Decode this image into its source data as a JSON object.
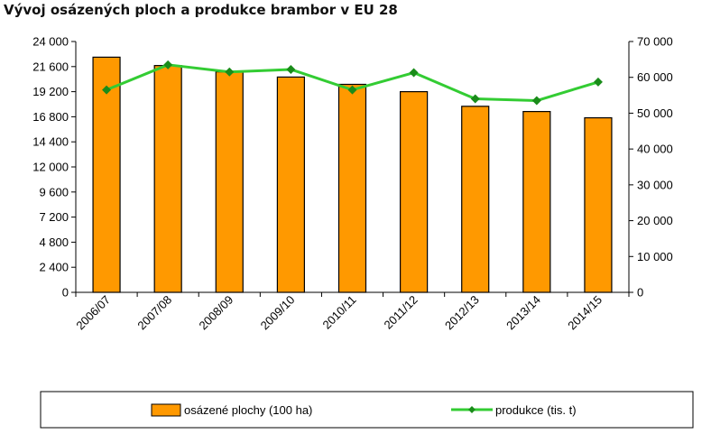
{
  "chart_data": {
    "type": "bar+line",
    "title": "Vývoj osázených ploch a produkce brambor v EU 28",
    "categories": [
      "2006/07",
      "2007/08",
      "2008/09",
      "2009/10",
      "2010/11",
      "2011/12",
      "2012/13",
      "2013/14",
      "2014/15"
    ],
    "series": [
      {
        "name": "osázené plochy (100 ha)",
        "type": "bar",
        "axis": "left",
        "color": "#ff9900",
        "values": [
          22500,
          21700,
          21100,
          20600,
          19900,
          19200,
          17800,
          17300,
          16700
        ]
      },
      {
        "name": "produkce (tis. t)",
        "type": "line",
        "axis": "right",
        "color": "#33cc33",
        "marker_color": "#1a8c1a",
        "values": [
          56500,
          63500,
          61500,
          62200,
          56500,
          61300,
          54000,
          53500,
          58700
        ]
      }
    ],
    "y_left": {
      "min": 0,
      "max": 24000,
      "ticks": [
        0,
        2400,
        4800,
        7200,
        9600,
        12000,
        14400,
        16800,
        19200,
        21600,
        24000
      ],
      "tick_labels": [
        "0",
        "2 400",
        "4 800",
        "7 200",
        "9 600",
        "12 000",
        "14 400",
        "16 800",
        "19 200",
        "21 600",
        "24 000"
      ]
    },
    "y_right": {
      "min": 0,
      "max": 70000,
      "ticks": [
        0,
        10000,
        20000,
        30000,
        40000,
        50000,
        60000,
        70000
      ],
      "tick_labels": [
        "0",
        "10 000",
        "20 000",
        "30 000",
        "40 000",
        "50 000",
        "60 000",
        "70 000"
      ]
    },
    "grid": false,
    "legend": "bottom"
  }
}
